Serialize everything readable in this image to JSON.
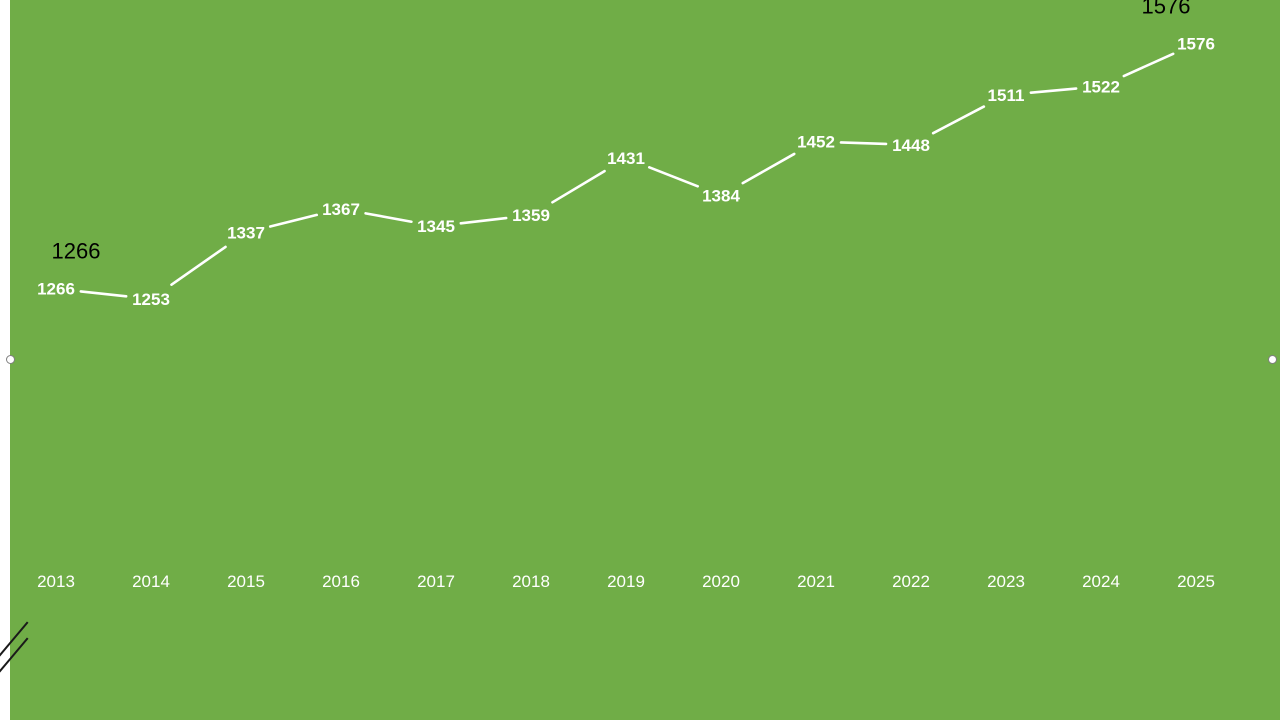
{
  "chart_data": {
    "type": "line",
    "title": "",
    "xlabel": "",
    "ylabel": "",
    "x": [
      "2013",
      "2014",
      "2015",
      "2016",
      "2017",
      "2018",
      "2019",
      "2020",
      "2021",
      "2022",
      "2023",
      "2024",
      "2025"
    ],
    "series": [
      {
        "values": [
          1266,
          1253,
          1337,
          1367,
          1345,
          1359,
          1431,
          1384,
          1452,
          1448,
          1511,
          1522,
          1576
        ]
      }
    ],
    "ylim": [
      966,
      1626
    ],
    "grid": false,
    "drop_lines": true,
    "data_labels": true,
    "annotations": [
      {
        "text": "1266",
        "x": "2013",
        "value": 1266,
        "placement": "above"
      },
      {
        "text": "1576",
        "x": "2025",
        "value": 1576,
        "placement": "above"
      }
    ]
  },
  "colors": {
    "plot_background": "#70ad47",
    "line": "#ffffff",
    "data_label": "#ffffff",
    "axis_label": "#ffffff",
    "annotation": "#000000"
  }
}
